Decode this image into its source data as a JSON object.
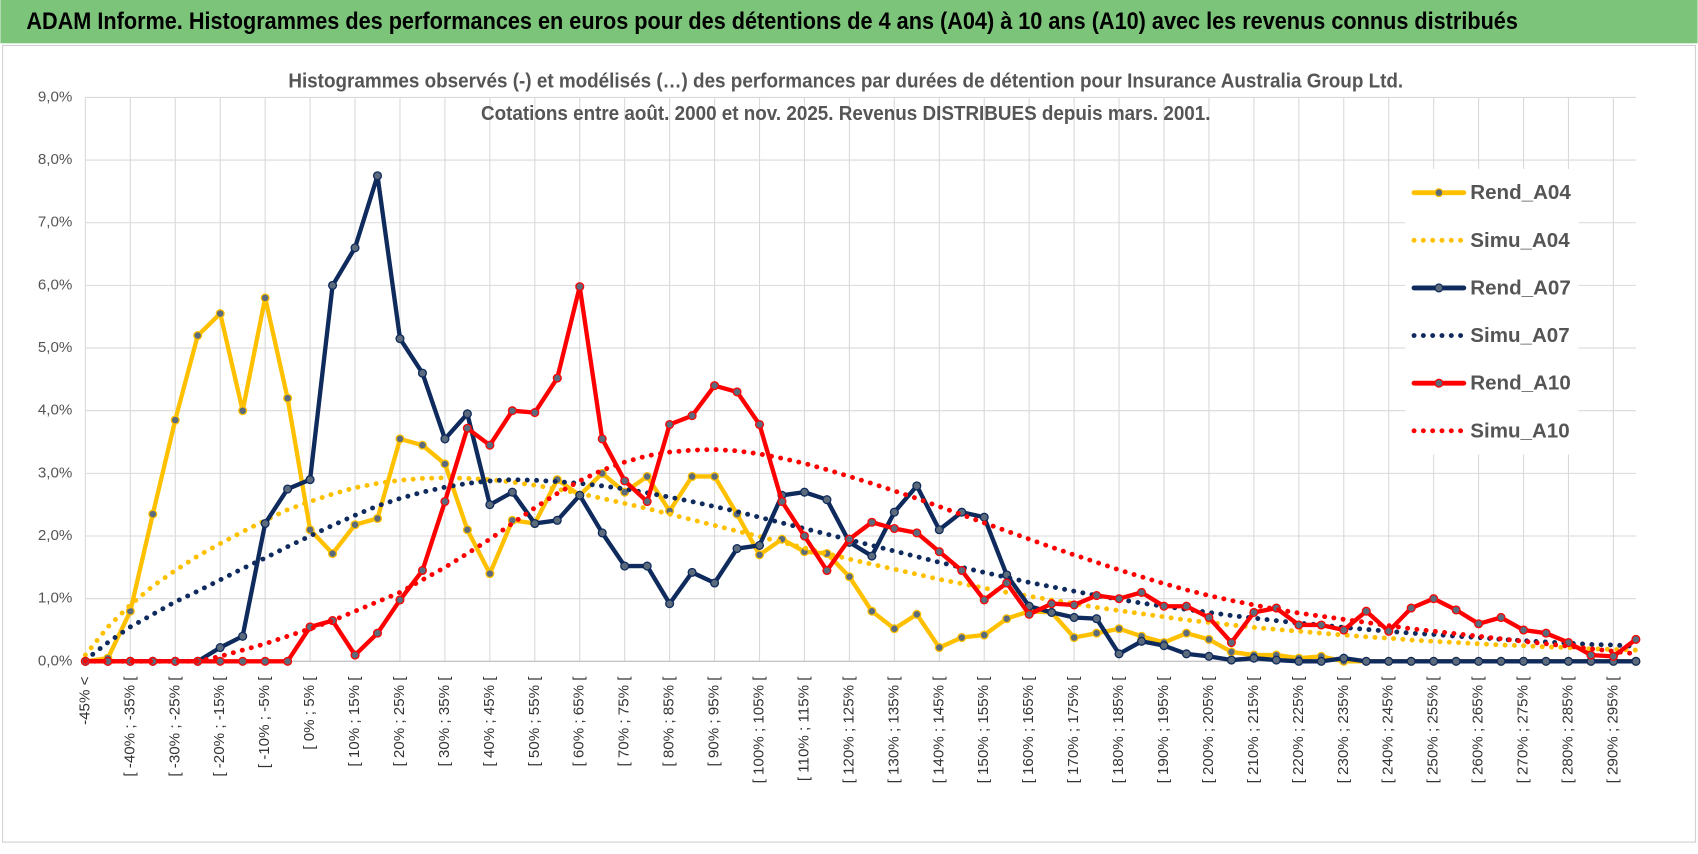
{
  "header": {
    "title": "ADAM Informe. Histogrammes des performances en euros pour des détentions de 4 ans (A04) à 10 ans (A10) avec les revenus connus distribués"
  },
  "chart_data": {
    "type": "line",
    "title": "Histogrammes observés (-) et modélisés (…)  des performances par durées de détention pour Insurance Australia Group Ltd.",
    "subtitle": "Cotations entre août. 2000 et nov. 2025. Revenus DISTRIBUES depuis mars. 2001.",
    "categories": [
      "-45% <",
      null,
      "[ -40% ; -35% [",
      null,
      "[ -30% ; -25% [",
      null,
      "[ -20% ; -15% [",
      null,
      "[ -10% ; -5% [",
      null,
      "[ 0% ; 5% [",
      null,
      "[ 10% ; 15% [",
      null,
      "[ 20% ; 25% [",
      null,
      "[ 30% ; 35% [",
      null,
      "[ 40% ; 45% [",
      null,
      "[ 50% ; 55% [",
      null,
      "[ 60% ; 65% [",
      null,
      "[ 70% ; 75% [",
      null,
      "[ 80% ; 85% [",
      null,
      "[ 90% ; 95% [",
      null,
      "[ 100% ; 105% [",
      null,
      "[ 110% ; 115% [",
      null,
      "[ 120% ; 125% [",
      null,
      "[ 130% ; 135% [",
      null,
      "[ 140% ; 145% [",
      null,
      "[ 150% ; 155% [",
      null,
      "[ 160% ; 165% [",
      null,
      "[ 170% ; 175% [",
      null,
      "[ 180% ; 185% [",
      null,
      "[ 190% ; 195% [",
      null,
      "[ 200% ; 205% [",
      null,
      "[ 210% ; 215% [",
      null,
      "[ 220% ; 225% [",
      null,
      "[ 230% ; 235% [",
      null,
      "[ 240% ; 245% [",
      null,
      "[ 250% ; 255% [",
      null,
      "[ 260% ; 265% [",
      null,
      "[ 270% ; 275% [",
      null,
      "[ 280% ; 285% [",
      null,
      "[ 290% ; 295% [",
      null
    ],
    "series": [
      {
        "name": "Rend_A04",
        "color": "#ffc000",
        "style": "solid",
        "markers": true,
        "values": [
          0,
          0.05,
          0.8,
          2.35,
          3.85,
          5.2,
          5.55,
          4.0,
          5.8,
          4.2,
          2.1,
          1.72,
          2.18,
          2.28,
          3.55,
          3.45,
          3.15,
          2.1,
          1.4,
          2.25,
          2.2,
          2.9,
          2.65,
          3.0,
          2.7,
          2.95,
          2.4,
          2.95,
          2.95,
          2.35,
          1.7,
          1.95,
          1.75,
          1.72,
          1.35,
          0.8,
          0.52,
          0.75,
          0.22,
          0.38,
          0.42,
          0.68,
          0.8,
          0.78,
          0.38,
          0.45,
          0.52,
          0.4,
          0.3,
          0.45,
          0.35,
          0.15,
          0.1,
          0.1,
          0.05,
          0.08,
          0,
          0,
          0,
          0,
          0,
          0,
          0,
          0,
          0,
          0,
          0,
          0,
          0,
          0
        ]
      },
      {
        "name": "Simu_A04",
        "color": "#ffc000",
        "style": "dotted",
        "markers": false,
        "values": [
          0.1,
          0.55,
          0.9,
          1.2,
          1.45,
          1.68,
          1.88,
          2.07,
          2.25,
          2.42,
          2.55,
          2.67,
          2.77,
          2.84,
          2.89,
          2.92,
          2.93,
          2.92,
          2.9,
          2.86,
          2.81,
          2.75,
          2.68,
          2.6,
          2.52,
          2.44,
          2.35,
          2.26,
          2.17,
          2.08,
          1.99,
          1.9,
          1.81,
          1.72,
          1.63,
          1.55,
          1.47,
          1.39,
          1.31,
          1.24,
          1.17,
          1.1,
          1.04,
          0.98,
          0.92,
          0.86,
          0.81,
          0.76,
          0.71,
          0.66,
          0.62,
          0.58,
          0.54,
          0.51,
          0.48,
          0.45,
          0.42,
          0.39,
          0.37,
          0.34,
          0.32,
          0.3,
          0.28,
          0.26,
          0.25,
          0.23,
          0.22,
          0.2,
          0.19,
          0.18
        ]
      },
      {
        "name": "Rend_A07",
        "color": "#0f2a5c",
        "style": "solid",
        "markers": true,
        "values": [
          0,
          0,
          0,
          0,
          0,
          0,
          0.22,
          0.4,
          2.2,
          2.75,
          2.9,
          6.0,
          6.6,
          7.75,
          5.15,
          4.6,
          3.55,
          3.95,
          2.5,
          2.7,
          2.2,
          2.25,
          2.65,
          2.05,
          1.52,
          1.52,
          0.92,
          1.42,
          1.25,
          1.8,
          1.85,
          2.65,
          2.7,
          2.58,
          1.9,
          1.68,
          2.38,
          2.8,
          2.1,
          2.38,
          2.3,
          1.38,
          0.88,
          0.78,
          0.7,
          0.68,
          0.12,
          0.32,
          0.25,
          0.12,
          0.08,
          0.02,
          0.05,
          0.02,
          0,
          0,
          0.05,
          0,
          0,
          0,
          0,
          0,
          0,
          0,
          0,
          0,
          0,
          0,
          0,
          0
        ]
      },
      {
        "name": "Simu_A07",
        "color": "#0f2a5c",
        "style": "dotted",
        "markers": false,
        "values": [
          0.02,
          0.3,
          0.55,
          0.75,
          0.95,
          1.12,
          1.3,
          1.48,
          1.65,
          1.83,
          2.0,
          2.17,
          2.33,
          2.48,
          2.6,
          2.7,
          2.78,
          2.84,
          2.88,
          2.9,
          2.89,
          2.87,
          2.84,
          2.8,
          2.75,
          2.69,
          2.62,
          2.55,
          2.47,
          2.39,
          2.3,
          2.21,
          2.12,
          2.03,
          1.94,
          1.85,
          1.76,
          1.67,
          1.58,
          1.5,
          1.42,
          1.34,
          1.26,
          1.19,
          1.12,
          1.05,
          0.99,
          0.93,
          0.88,
          0.83,
          0.78,
          0.73,
          0.69,
          0.65,
          0.61,
          0.58,
          0.54,
          0.51,
          0.48,
          0.45,
          0.43,
          0.4,
          0.38,
          0.35,
          0.33,
          0.31,
          0.29,
          0.27,
          0.26,
          0.24
        ]
      },
      {
        "name": "Rend_A10",
        "color": "#ff0000",
        "style": "solid",
        "markers": true,
        "values": [
          0,
          0,
          0,
          0,
          0,
          0,
          0,
          0,
          0,
          0,
          0.55,
          0.65,
          0.1,
          0.45,
          0.98,
          1.45,
          2.55,
          3.72,
          3.45,
          4.0,
          3.97,
          4.52,
          5.98,
          3.55,
          2.88,
          2.55,
          3.78,
          3.92,
          4.4,
          4.3,
          3.78,
          2.55,
          2.0,
          1.45,
          1.95,
          2.22,
          2.12,
          2.05,
          1.75,
          1.45,
          0.98,
          1.25,
          0.75,
          0.92,
          0.9,
          1.05,
          1.0,
          1.1,
          0.88,
          0.88,
          0.7,
          0.3,
          0.78,
          0.85,
          0.58,
          0.58,
          0.5,
          0.8,
          0.48,
          0.85,
          1.0,
          0.82,
          0.6,
          0.7,
          0.5,
          0.45,
          0.3,
          0.1,
          0.08,
          0.35
        ]
      },
      {
        "name": "Simu_A10",
        "color": "#ff0000",
        "style": "dotted",
        "markers": false,
        "values": [
          0,
          0,
          0,
          0,
          0,
          0,
          0.08,
          0.18,
          0.28,
          0.4,
          0.52,
          0.65,
          0.8,
          0.95,
          1.1,
          1.3,
          1.5,
          1.72,
          1.95,
          2.2,
          2.45,
          2.68,
          2.88,
          3.05,
          3.18,
          3.28,
          3.34,
          3.37,
          3.38,
          3.36,
          3.31,
          3.24,
          3.16,
          3.06,
          2.95,
          2.84,
          2.72,
          2.6,
          2.47,
          2.34,
          2.21,
          2.08,
          1.95,
          1.82,
          1.7,
          1.58,
          1.46,
          1.35,
          1.24,
          1.14,
          1.05,
          0.97,
          0.9,
          0.83,
          0.77,
          0.72,
          0.67,
          0.62,
          0.57,
          0.52,
          0.48,
          0.44,
          0.4,
          0.36,
          0.32,
          0.28,
          0.24,
          0.2,
          0.16,
          0.12
        ]
      }
    ],
    "ylim": [
      0,
      9
    ],
    "yticks": [
      {
        "value": 0,
        "label": "0,0%"
      },
      {
        "value": 1,
        "label": "1,0%"
      },
      {
        "value": 2,
        "label": "2,0%"
      },
      {
        "value": 3,
        "label": "3,0%"
      },
      {
        "value": 4,
        "label": "4,0%"
      },
      {
        "value": 5,
        "label": "5,0%"
      },
      {
        "value": 6,
        "label": "6,0%"
      },
      {
        "value": 7,
        "label": "7,0%"
      },
      {
        "value": 8,
        "label": "8,0%"
      },
      {
        "value": 9,
        "label": "9,0%"
      }
    ],
    "grid": true,
    "legend": "right"
  }
}
